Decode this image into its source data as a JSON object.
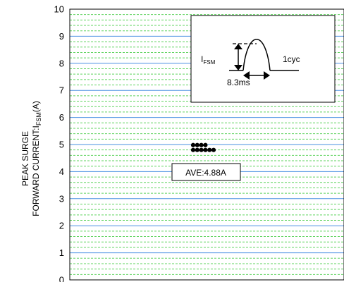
{
  "chart_data": {
    "type": "scatter",
    "ylabel_line1": "PEAK SURGE",
    "ylabel_line2_main": "FORWARD CURRENT:I",
    "ylabel_line2_sub": "FSM",
    "ylabel_line2_unit": "(A)",
    "ylim": [
      0,
      10
    ],
    "yticks": [
      "0",
      "1",
      "2",
      "3",
      "4",
      "5",
      "6",
      "7",
      "8",
      "9",
      "10"
    ],
    "grid": "major solid blue, minor dashed green",
    "points": [
      {
        "col": 0,
        "y": 4.98
      },
      {
        "col": 1,
        "y": 4.98
      },
      {
        "col": 2,
        "y": 4.98
      },
      {
        "col": 3,
        "y": 4.98
      },
      {
        "col": 0,
        "y": 4.8
      },
      {
        "col": 1,
        "y": 4.8
      },
      {
        "col": 2,
        "y": 4.8
      },
      {
        "col": 3,
        "y": 4.8
      },
      {
        "col": 4,
        "y": 4.8
      },
      {
        "col": 5,
        "y": 4.8
      }
    ],
    "annotation": "AVE:4.88A",
    "inset": {
      "label_main": "I",
      "label_sub": "FSM",
      "cycle_label": "1cyc",
      "time_label": "8.3ms"
    },
    "colors": {
      "major_grid": "#4a90e2",
      "minor_grid": "#5fd35f",
      "points": "#000000"
    }
  }
}
